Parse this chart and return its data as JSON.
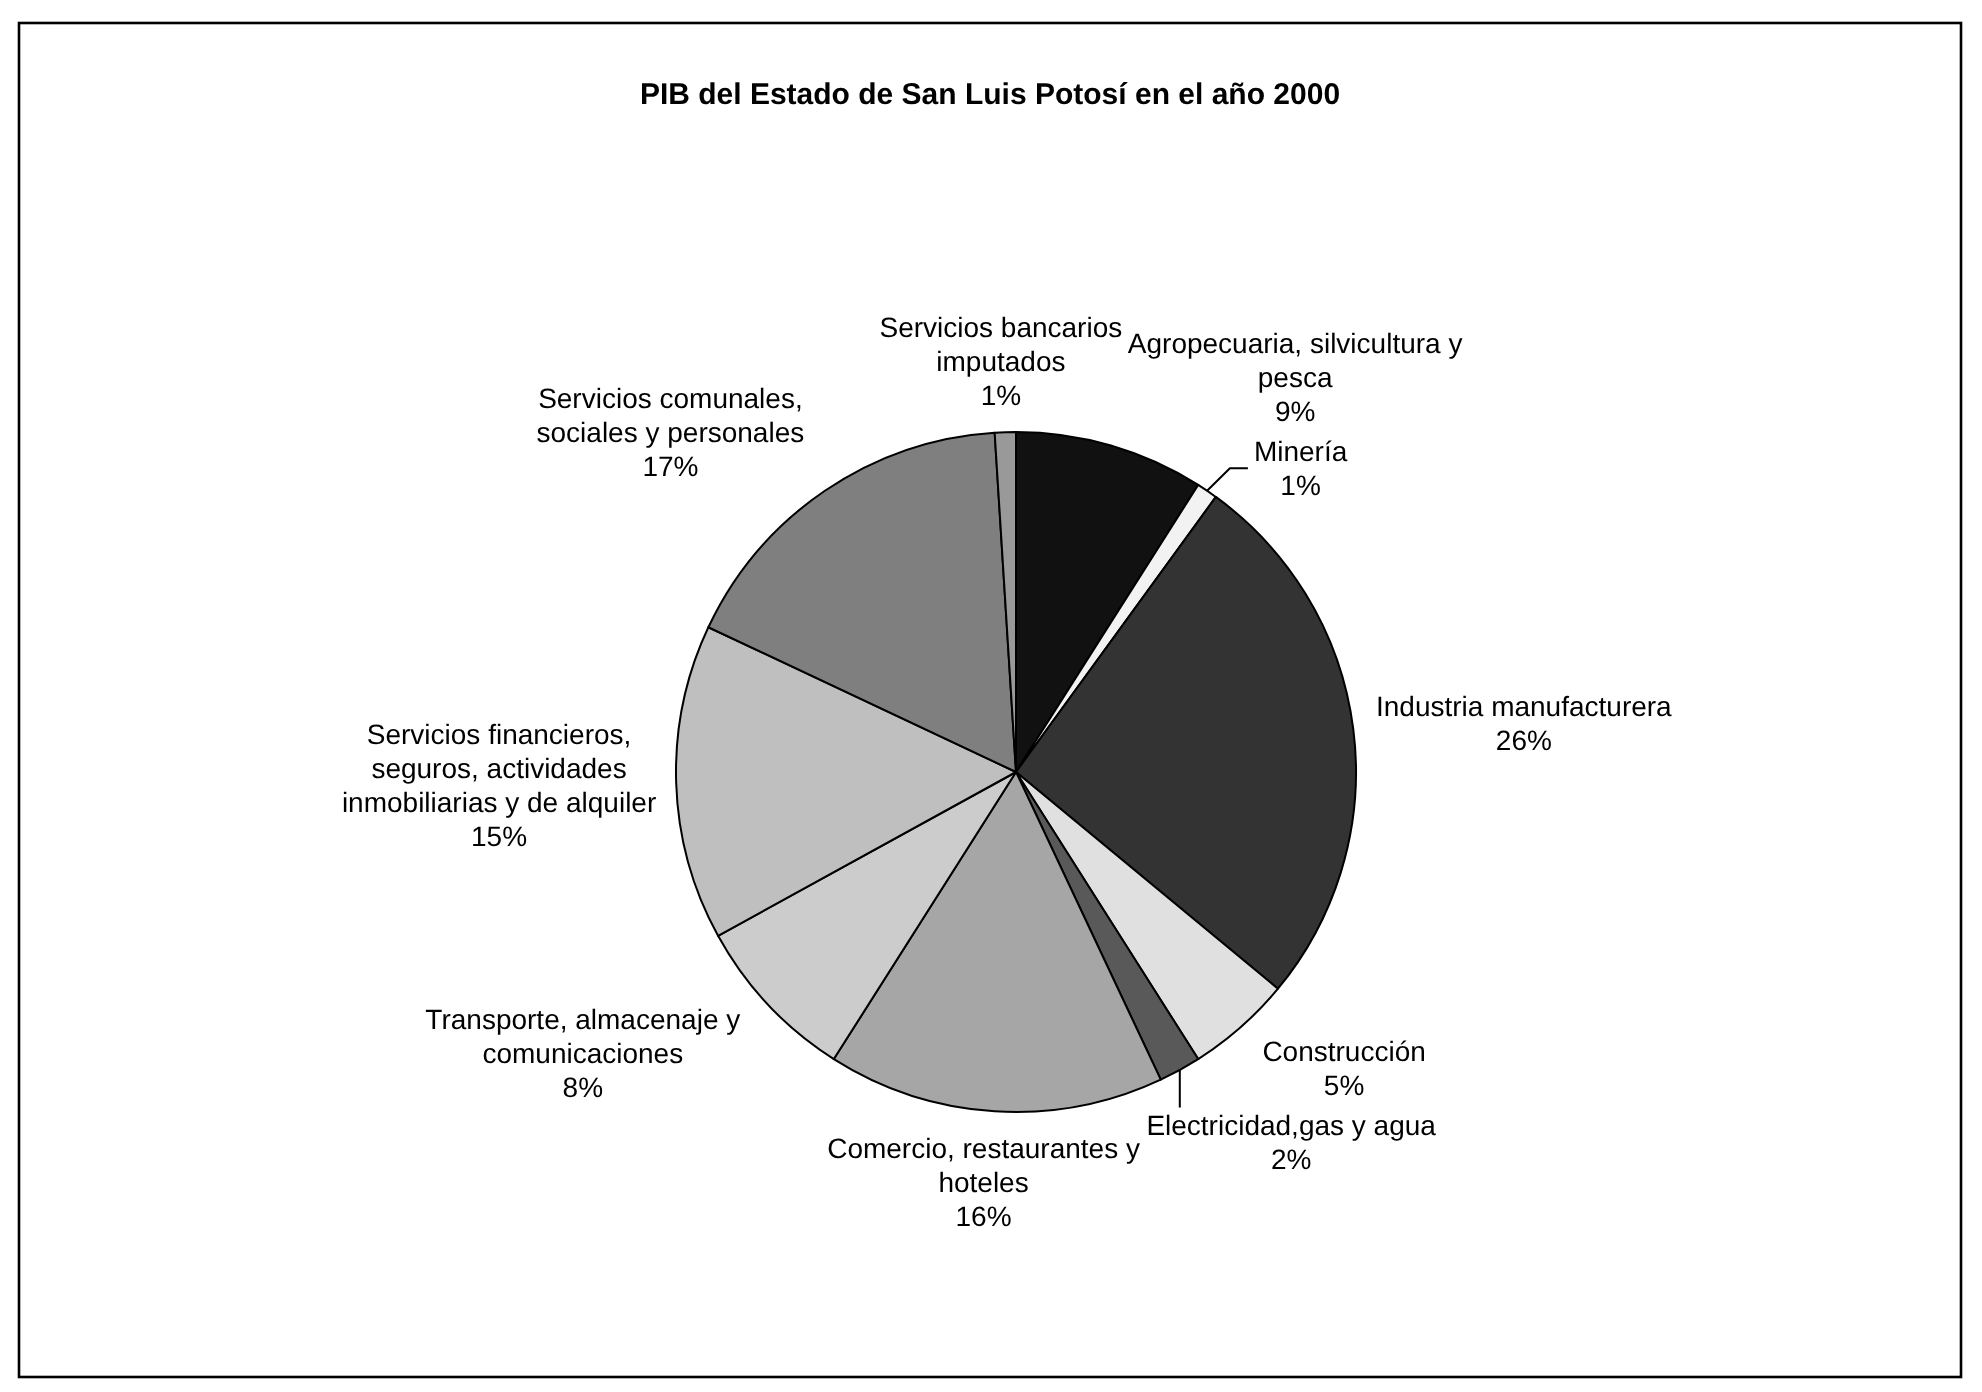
{
  "chart_data": {
    "type": "pie",
    "title": "PIB del Estado de San Luis Potosí en el año 2000",
    "categories": [
      "Agropecuaria, silvicultura y pesca",
      "Minería",
      "Industria manufacturera",
      "Construcción",
      "Electricidad,gas y agua",
      "Comercio, restaurantes y hoteles",
      "Transporte, almacenaje y comunicaciones",
      "Servicios financieros, seguros, actividades inmobiliarias y de alquiler",
      "Servicios comunales, sociales y personales",
      "Servicios bancarios imputados"
    ],
    "values": [
      9,
      1,
      26,
      5,
      2,
      16,
      8,
      15,
      17,
      1
    ],
    "value_labels": [
      "9%",
      "1%",
      "26%",
      "5%",
      "2%",
      "16%",
      "8%",
      "15%",
      "17%",
      "1%"
    ],
    "colors": [
      "#111111",
      "#f2f2f2",
      "#333333",
      "#e0e0e0",
      "#595959",
      "#a6a6a6",
      "#cccccc",
      "#bfbfbf",
      "#7f7f7f",
      "#999999"
    ]
  }
}
